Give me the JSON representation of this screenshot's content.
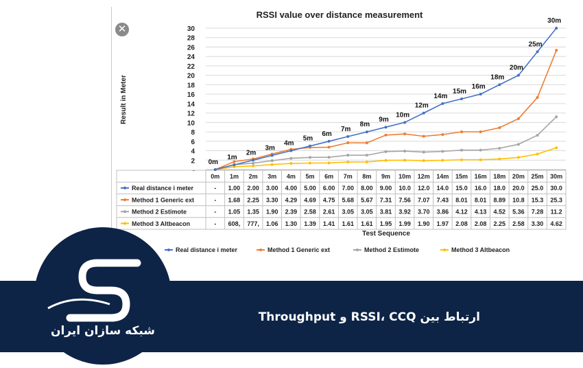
{
  "chart_data": {
    "type": "line",
    "title": "RSSI value over distance measurement",
    "xlabel": "Test Sequence",
    "ylabel": "Result in Meter",
    "ylim": [
      0,
      30
    ],
    "yticks": [
      "-",
      "2",
      "4",
      "6",
      "8",
      "10",
      "12",
      "14",
      "16",
      "18",
      "20",
      "22",
      "24",
      "26",
      "28",
      "30"
    ],
    "grid": true,
    "legend_position": "bottom",
    "categories": [
      "0m",
      "1m",
      "2m",
      "3m",
      "4m",
      "5m",
      "6m",
      "7m",
      "8m",
      "9m",
      "10m",
      "12m",
      "14m",
      "15m",
      "16m",
      "18m",
      "20m",
      "25m",
      "30m"
    ],
    "point_labels": [
      "0m",
      "1m",
      "2m",
      "3m",
      "4m",
      "5m",
      "6m",
      "7m",
      "8m",
      "9m",
      "10m",
      "12m",
      "14m",
      "15m",
      "16m",
      "18m",
      "20m",
      "25m",
      "30m"
    ],
    "series": [
      {
        "name": "Real distance i meter",
        "color": "#4472c4",
        "values": [
          0,
          1,
          2,
          3,
          4,
          5,
          6,
          7,
          8,
          9,
          10,
          12,
          14,
          15,
          16,
          18,
          20,
          25,
          30
        ],
        "table": [
          "-",
          "1.00",
          "2.00",
          "3.00",
          "4.00",
          "5.00",
          "6.00",
          "7.00",
          "8.00",
          "9.00",
          "10.0",
          "12.0",
          "14.0",
          "15.0",
          "16.0",
          "18.0",
          "20.0",
          "25.0",
          "30.0"
        ]
      },
      {
        "name": "Method 1 Generic ext",
        "color": "#ed7d31",
        "values": [
          0,
          1.68,
          2.25,
          3.3,
          4.29,
          4.69,
          4.75,
          5.68,
          5.67,
          7.31,
          7.56,
          7.07,
          7.43,
          8.01,
          8.01,
          8.89,
          10.8,
          15.3,
          25.3
        ],
        "table": [
          "-",
          "1.68",
          "2.25",
          "3.30",
          "4.29",
          "4.69",
          "4.75",
          "5.68",
          "5.67",
          "7.31",
          "7.56",
          "7.07",
          "7.43",
          "8.01",
          "8.01",
          "8.89",
          "10.8",
          "15.3",
          "25.3"
        ]
      },
      {
        "name": "Method 2 Estimote",
        "color": "#a5a5a5",
        "values": [
          0,
          1.05,
          1.35,
          1.9,
          2.39,
          2.58,
          2.61,
          3.05,
          3.05,
          3.81,
          3.92,
          3.7,
          3.86,
          4.12,
          4.13,
          4.52,
          5.36,
          7.28,
          11.2
        ],
        "table": [
          "-",
          "1.05",
          "1.35",
          "1.90",
          "2.39",
          "2.58",
          "2.61",
          "3.05",
          "3.05",
          "3.81",
          "3.92",
          "3.70",
          "3.86",
          "4.12",
          "4.13",
          "4.52",
          "5.36",
          "7.28",
          "11.2"
        ]
      },
      {
        "name": "Method 3 Altbeacon",
        "color": "#ffc000",
        "values": [
          0,
          0.608,
          0.777,
          1.06,
          1.3,
          1.39,
          1.41,
          1.61,
          1.61,
          1.95,
          1.99,
          1.9,
          1.97,
          2.08,
          2.08,
          2.25,
          2.58,
          3.3,
          4.62
        ],
        "table": [
          "-",
          "608,",
          "777,",
          "1.06",
          "1.30",
          "1.39",
          "1.41",
          "1.61",
          "1.61",
          "1.95",
          "1.99",
          "1.90",
          "1.97",
          "2.08",
          "2.08",
          "2.25",
          "2.58",
          "3.30",
          "4.62"
        ]
      }
    ]
  },
  "banner": {
    "title": "ارتباط بین RSSI، CCQ و Throughput",
    "logo_text": "شبکه سازان ایران"
  },
  "icons": {
    "close": "close-icon",
    "logo": "logo-s-icon"
  },
  "colors": {
    "banner_bg": "#0d2446",
    "grid": "#d9d9d9",
    "table_border": "#bfbfbf"
  }
}
